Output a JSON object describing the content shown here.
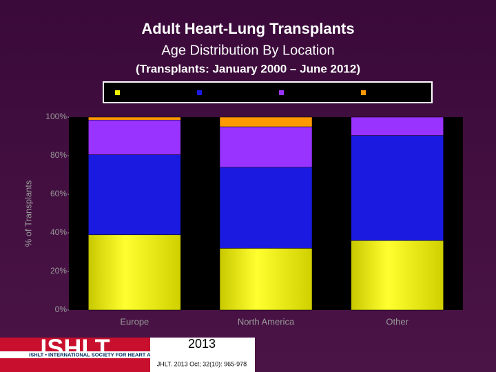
{
  "chart_data": {
    "type": "stacked_bar",
    "title": "Adult Heart-Lung Transplants",
    "subtitle": "Age Distribution By Location",
    "subtitle2": "(Transplants: January 2000 – June 2012)",
    "y_label": "% of Transplants",
    "categories": [
      "Europe",
      "North America",
      "Other"
    ],
    "series": [
      {
        "color": "#f0f000",
        "values": [
          39,
          32,
          36
        ]
      },
      {
        "color": "#1a1ae0",
        "values": [
          41.5,
          42,
          54.5
        ]
      },
      {
        "color": "#9933ff",
        "values": [
          18,
          21,
          9.5
        ]
      },
      {
        "color": "#ff9900",
        "values": [
          1.5,
          5,
          0
        ]
      }
    ],
    "ylim": [
      0,
      100
    ],
    "yticks": [
      {
        "value": 0,
        "label": "0%"
      },
      {
        "value": 20,
        "label": "20%"
      },
      {
        "value": 40,
        "label": "40%"
      },
      {
        "value": 60,
        "label": "60%"
      },
      {
        "value": 80,
        "label": "80%"
      },
      {
        "value": 100,
        "label": "100%"
      }
    ],
    "grid": false
  },
  "footer": {
    "logo": "ISHLT",
    "society": "ISHLT • INTERNATIONAL SOCIETY FOR HEART AND LUNG TRANSPLANTATION",
    "year": "2013",
    "citation": "JHLT. 2013 Oct; 32(10): 965-978"
  }
}
